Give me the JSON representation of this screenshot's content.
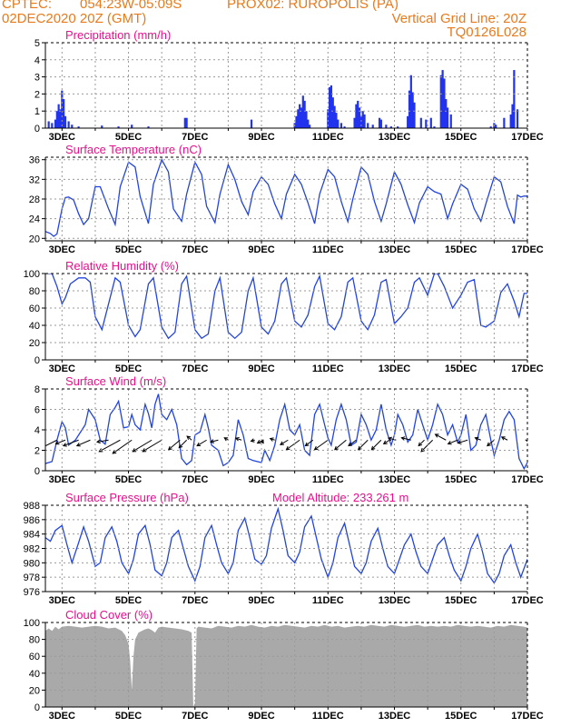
{
  "header": {
    "line1_left": "CPTEC:",
    "coords": "054:23W-05:09S",
    "station": "PROX02: RUROPOLIS (PA)",
    "line2_left": "02DEC2020 20Z (GMT)",
    "grid_note": "Vertical Grid Line: 20Z",
    "run_code": "TQ0126L028"
  },
  "colors": {
    "header": "#e87a1c",
    "panel_title": "#e8108c",
    "series_line": "#2244dd",
    "precip_bar": "#2233ee",
    "cloud_fill": "#a9a9a9",
    "wind_arrow": "#000000"
  },
  "x_axis": {
    "tick_labels": [
      "3DEC",
      "5DEC",
      "7DEC",
      "9DEC",
      "11DEC",
      "13DEC",
      "15DEC",
      "17DEC"
    ],
    "tick_days": [
      3,
      5,
      7,
      9,
      11,
      13,
      15,
      17
    ],
    "range_days": [
      2.5,
      17.0
    ]
  },
  "chart_data": [
    {
      "type": "bar",
      "title": "Precipitation (mm/h)",
      "ylim": [
        0,
        5
      ],
      "yticks": [
        0,
        1,
        2,
        3,
        4,
        5
      ],
      "grid": true,
      "x_days": [
        2.6,
        2.7,
        2.8,
        2.85,
        2.9,
        2.95,
        3.0,
        3.05,
        3.1,
        3.2,
        3.3,
        3.5,
        4.2,
        4.7,
        5.1,
        5.6,
        6.7,
        6.75,
        8.7,
        10.0,
        10.05,
        10.1,
        10.15,
        10.2,
        10.25,
        10.3,
        10.35,
        10.4,
        10.45,
        11.0,
        11.05,
        11.1,
        11.15,
        11.2,
        11.25,
        11.3,
        11.4,
        11.5,
        11.8,
        11.85,
        11.9,
        11.95,
        12.0,
        12.05,
        12.1,
        12.2,
        12.35,
        12.55,
        12.6,
        12.75,
        12.9,
        13.1,
        13.4,
        13.45,
        13.5,
        13.55,
        13.6,
        13.8,
        13.95,
        14.1,
        14.2,
        14.4,
        14.45,
        14.5,
        14.55,
        14.6,
        14.7,
        15.9,
        16.0,
        16.05,
        16.3,
        16.5,
        16.55,
        16.6,
        16.7
      ],
      "values": [
        0.4,
        0.3,
        0.5,
        1.0,
        1.4,
        1.1,
        2.2,
        1.7,
        0.7,
        0.4,
        0.2,
        0.1,
        0.15,
        0.1,
        0.2,
        0.1,
        0.6,
        0.6,
        0.5,
        0.3,
        0.7,
        1.1,
        1.4,
        1.2,
        1.9,
        1.6,
        1.0,
        0.5,
        0.2,
        1.1,
        2.4,
        2.5,
        1.8,
        1.3,
        0.9,
        0.5,
        0.3,
        0.1,
        0.6,
        1.4,
        1.6,
        1.2,
        0.7,
        1.0,
        0.8,
        0.3,
        0.2,
        0.6,
        0.5,
        0.2,
        0.1,
        0.1,
        0.7,
        2.2,
        3.1,
        2.1,
        1.5,
        0.6,
        0.5,
        0.6,
        0.1,
        3.1,
        3.4,
        2.9,
        1.7,
        1.2,
        0.8,
        0.1,
        0.3,
        0.2,
        0.6,
        0.8,
        1.4,
        3.4,
        1.1
      ]
    },
    {
      "type": "line",
      "title": "Surface Temperature (nC)",
      "ylim": [
        19.5,
        36.5
      ],
      "yticks": [
        20,
        24,
        28,
        32,
        36
      ],
      "grid": true,
      "x_days": [
        2.5,
        2.65,
        2.75,
        2.85,
        3.0,
        3.1,
        3.2,
        3.35,
        3.5,
        3.65,
        3.8,
        4.0,
        4.15,
        4.4,
        4.6,
        4.75,
        5.0,
        5.2,
        5.35,
        5.6,
        5.75,
        6.0,
        6.2,
        6.35,
        6.6,
        6.75,
        7.0,
        7.2,
        7.35,
        7.6,
        7.75,
        8.0,
        8.2,
        8.4,
        8.6,
        8.75,
        9.0,
        9.2,
        9.4,
        9.6,
        9.75,
        10.0,
        10.2,
        10.4,
        10.6,
        10.75,
        11.0,
        11.2,
        11.4,
        11.6,
        11.75,
        12.0,
        12.2,
        12.4,
        12.6,
        12.75,
        13.0,
        13.2,
        13.4,
        13.6,
        13.75,
        14.0,
        14.2,
        14.4,
        14.6,
        14.75,
        15.0,
        15.2,
        15.4,
        15.6,
        15.75,
        16.0,
        16.2,
        16.4,
        16.6,
        16.7,
        16.8,
        16.9,
        17.0
      ],
      "values": [
        21.4,
        21.0,
        20.4,
        20.9,
        26.0,
        28.3,
        28.4,
        27.8,
        25.0,
        22.8,
        24.0,
        30.5,
        30.5,
        26.0,
        22.8,
        30.5,
        35.5,
        34.5,
        28.5,
        23.0,
        31.0,
        36.0,
        33.5,
        26.0,
        23.5,
        29.0,
        35.5,
        33.0,
        26.5,
        23.2,
        29.0,
        35.0,
        32.0,
        27.5,
        24.8,
        29.5,
        32.5,
        31.0,
        27.0,
        24.0,
        29.0,
        33.0,
        31.0,
        27.2,
        23.0,
        29.0,
        34.0,
        32.5,
        27.5,
        23.4,
        28.0,
        34.5,
        33.0,
        27.5,
        23.5,
        27.0,
        33.5,
        31.0,
        26.8,
        23.2,
        27.2,
        30.5,
        29.5,
        29.0,
        24.0,
        27.0,
        31.0,
        30.0,
        26.0,
        23.5,
        27.0,
        32.5,
        31.5,
        26.5,
        23.0,
        28.8,
        28.4,
        28.6,
        28.6
      ]
    },
    {
      "type": "line",
      "title": "Relative Humidity (%)",
      "ylim": [
        0,
        100
      ],
      "yticks": [
        0,
        20,
        40,
        60,
        80,
        100
      ],
      "grid": true,
      "x_days": [
        2.5,
        2.7,
        2.85,
        3.0,
        3.1,
        3.25,
        3.5,
        3.7,
        3.85,
        4.0,
        4.2,
        4.4,
        4.6,
        4.75,
        5.0,
        5.2,
        5.35,
        5.6,
        5.75,
        6.0,
        6.2,
        6.4,
        6.6,
        6.75,
        7.0,
        7.2,
        7.4,
        7.6,
        7.75,
        8.0,
        8.2,
        8.4,
        8.6,
        8.75,
        9.0,
        9.2,
        9.4,
        9.6,
        9.75,
        10.0,
        10.2,
        10.4,
        10.6,
        10.75,
        11.0,
        11.2,
        11.4,
        11.6,
        11.75,
        12.0,
        12.2,
        12.4,
        12.6,
        12.75,
        13.0,
        13.2,
        13.4,
        13.6,
        13.75,
        14.0,
        14.2,
        14.3,
        14.5,
        14.6,
        14.75,
        15.0,
        15.2,
        15.4,
        15.6,
        15.75,
        16.0,
        16.2,
        16.4,
        16.6,
        16.75,
        16.9,
        17.0
      ],
      "values": [
        100,
        100,
        85,
        65,
        72,
        88,
        95,
        95,
        90,
        50,
        35,
        65,
        95,
        90,
        40,
        27,
        35,
        88,
        95,
        38,
        25,
        32,
        88,
        97,
        35,
        25,
        30,
        80,
        95,
        32,
        25,
        32,
        80,
        95,
        38,
        30,
        45,
        88,
        95,
        45,
        38,
        52,
        85,
        97,
        42,
        35,
        50,
        90,
        95,
        45,
        35,
        52,
        90,
        93,
        42,
        50,
        60,
        90,
        95,
        75,
        100,
        100,
        85,
        75,
        60,
        75,
        90,
        93,
        40,
        38,
        45,
        78,
        88,
        68,
        50,
        77,
        77
      ]
    },
    {
      "type": "line",
      "title": "Surface Wind (m/s)",
      "ylim": [
        0,
        8
      ],
      "yticks": [
        0,
        2,
        4,
        6,
        8
      ],
      "grid": true,
      "x_days": [
        2.5,
        2.7,
        2.85,
        3.0,
        3.1,
        3.2,
        3.4,
        3.6,
        3.7,
        3.8,
        4.0,
        4.15,
        4.3,
        4.45,
        4.6,
        4.7,
        4.85,
        5.0,
        5.1,
        5.2,
        5.35,
        5.5,
        5.6,
        5.7,
        5.8,
        5.9,
        6.0,
        6.15,
        6.3,
        6.45,
        6.6,
        6.75,
        6.9,
        7.0,
        7.15,
        7.3,
        7.4,
        7.5,
        7.7,
        7.85,
        8.0,
        8.15,
        8.3,
        8.45,
        8.6,
        8.75,
        9.0,
        9.1,
        9.25,
        9.4,
        9.55,
        9.7,
        9.85,
        10.0,
        10.15,
        10.3,
        10.45,
        10.6,
        10.75,
        10.9,
        11.0,
        11.1,
        11.25,
        11.4,
        11.55,
        11.7,
        11.85,
        12.0,
        12.15,
        12.3,
        12.45,
        12.6,
        12.75,
        12.9,
        13.0,
        13.1,
        13.25,
        13.4,
        13.55,
        13.7,
        13.85,
        14.0,
        14.15,
        14.3,
        14.45,
        14.6,
        14.75,
        14.9,
        15.0,
        15.15,
        15.3,
        15.45,
        15.6,
        15.75,
        15.9,
        16.0,
        16.15,
        16.3,
        16.45,
        16.6,
        16.75,
        16.9,
        17.0
      ],
      "values": [
        0.7,
        0.9,
        3.0,
        4.8,
        4.2,
        2.5,
        3.0,
        4.0,
        4.5,
        6.0,
        5.0,
        3.0,
        2.6,
        5.5,
        6.2,
        6.8,
        4.2,
        4.3,
        5.5,
        4.5,
        4.0,
        6.5,
        5.6,
        4.2,
        6.5,
        7.5,
        5.5,
        5.0,
        6.0,
        4.5,
        1.2,
        0.6,
        1.0,
        3.5,
        3.8,
        5.5,
        4.2,
        2.5,
        2.0,
        0.5,
        0.8,
        1.5,
        5.0,
        3.5,
        1.2,
        1.0,
        0.8,
        2.0,
        1.0,
        2.5,
        5.0,
        6.5,
        4.0,
        3.5,
        4.5,
        2.0,
        1.5,
        5.5,
        6.5,
        4.5,
        3.2,
        2.5,
        5.0,
        6.5,
        5.0,
        2.5,
        2.8,
        5.5,
        4.5,
        3.0,
        4.0,
        6.5,
        4.0,
        2.5,
        3.5,
        5.5,
        4.5,
        2.8,
        3.5,
        6.0,
        4.5,
        3.0,
        4.5,
        6.5,
        5.5,
        3.5,
        4.5,
        2.8,
        3.5,
        5.5,
        2.0,
        2.5,
        4.5,
        5.5,
        3.0,
        1.5,
        3.0,
        5.0,
        5.8,
        5.0,
        1.2,
        0.2,
        0.8
      ],
      "arrows": [
        {
          "x_day": 2.85,
          "u": -4.0,
          "v": -2.0
        },
        {
          "x_day": 3.1,
          "u": -2.5,
          "v": -1.0
        },
        {
          "x_day": 3.5,
          "u": -4.0,
          "v": -1.5
        },
        {
          "x_day": 3.85,
          "u": -3.5,
          "v": -1.5
        },
        {
          "x_day": 4.4,
          "u": -3.0,
          "v": -0.5
        },
        {
          "x_day": 4.75,
          "u": -5.5,
          "v": -3.0
        },
        {
          "x_day": 5.1,
          "u": -5.0,
          "v": -3.5
        },
        {
          "x_day": 5.7,
          "u": -5.0,
          "v": -3.0
        },
        {
          "x_day": 6.0,
          "u": -5.0,
          "v": -3.0
        },
        {
          "x_day": 6.55,
          "u": -3.0,
          "v": -2.5
        },
        {
          "x_day": 6.75,
          "u": -2.0,
          "v": -2.0
        },
        {
          "x_day": 6.9,
          "u": -1.2,
          "v": 1.0
        },
        {
          "x_day": 7.35,
          "u": -2.5,
          "v": -1.5
        },
        {
          "x_day": 7.7,
          "u": -2.0,
          "v": -0.5
        },
        {
          "x_day": 8.0,
          "u": -1.0,
          "v": 0.6
        },
        {
          "x_day": 8.4,
          "u": -1.5,
          "v": 0.5
        },
        {
          "x_day": 8.8,
          "u": -1.0,
          "v": -0.3
        },
        {
          "x_day": 9.0,
          "u": 0.5,
          "v": -0.8
        },
        {
          "x_day": 9.05,
          "u": -1.5,
          "v": -0.8
        },
        {
          "x_day": 9.4,
          "u": -1.2,
          "v": 0.4
        },
        {
          "x_day": 9.8,
          "u": -2.0,
          "v": -1.2
        },
        {
          "x_day": 10.15,
          "u": -3.5,
          "v": -2.5
        },
        {
          "x_day": 10.55,
          "u": -2.0,
          "v": -1.5
        },
        {
          "x_day": 11.0,
          "u": -3.5,
          "v": -2.5
        },
        {
          "x_day": 11.55,
          "u": -3.0,
          "v": -2.5
        },
        {
          "x_day": 11.85,
          "u": -2.0,
          "v": -1.5
        },
        {
          "x_day": 12.2,
          "u": -2.5,
          "v": -2.5
        },
        {
          "x_day": 12.6,
          "u": -2.5,
          "v": -2.5
        },
        {
          "x_day": 12.85,
          "u": -1.5,
          "v": -1.0
        },
        {
          "x_day": 13.05,
          "u": -2.0,
          "v": 0.5
        },
        {
          "x_day": 13.5,
          "u": -2.5,
          "v": 0.6
        },
        {
          "x_day": 13.9,
          "u": -1.5,
          "v": -1.5
        },
        {
          "x_day": 14.15,
          "u": -3.0,
          "v": -3.0
        },
        {
          "x_day": 14.55,
          "u": -2.8,
          "v": 1.5
        },
        {
          "x_day": 14.9,
          "u": -2.5,
          "v": -1.0
        },
        {
          "x_day": 15.2,
          "u": -2.5,
          "v": -0.8
        },
        {
          "x_day": 15.6,
          "u": -1.5,
          "v": 0.6
        },
        {
          "x_day": 16.0,
          "u": -1.8,
          "v": -1.5
        },
        {
          "x_day": 16.4,
          "u": -1.5,
          "v": 0.8
        },
        {
          "x_day": 17.0,
          "u": 0.2,
          "v": -0.5
        }
      ]
    },
    {
      "type": "line",
      "title": "Surface Pressure (hPa)",
      "subtitle": "Model Altitude: 233.261 m",
      "ylim": [
        976,
        988
      ],
      "yticks": [
        976,
        978,
        980,
        982,
        984,
        986,
        988
      ],
      "grid": true,
      "x_days": [
        2.5,
        2.65,
        2.8,
        3.0,
        3.15,
        3.3,
        3.5,
        3.65,
        3.8,
        4.0,
        4.15,
        4.3,
        4.5,
        4.65,
        4.8,
        5.0,
        5.15,
        5.3,
        5.5,
        5.65,
        5.8,
        6.0,
        6.15,
        6.3,
        6.5,
        6.65,
        6.8,
        7.0,
        7.15,
        7.3,
        7.5,
        7.65,
        7.8,
        8.0,
        8.15,
        8.3,
        8.5,
        8.65,
        8.8,
        9.0,
        9.15,
        9.3,
        9.5,
        9.65,
        9.8,
        10.0,
        10.15,
        10.3,
        10.5,
        10.65,
        10.8,
        11.0,
        11.15,
        11.3,
        11.5,
        11.65,
        11.8,
        12.0,
        12.15,
        12.3,
        12.5,
        12.65,
        12.8,
        13.0,
        13.15,
        13.3,
        13.5,
        13.65,
        13.8,
        14.0,
        14.15,
        14.3,
        14.5,
        14.65,
        14.8,
        15.0,
        15.15,
        15.3,
        15.5,
        15.65,
        15.8,
        16.0,
        16.15,
        16.3,
        16.5,
        16.65,
        16.8,
        17.0
      ],
      "values": [
        983.5,
        983.0,
        984.5,
        985.2,
        982.5,
        980.0,
        982.8,
        985.0,
        983.0,
        979.5,
        980.0,
        983.5,
        985.0,
        983.0,
        980.0,
        978.5,
        980.5,
        984.0,
        985.2,
        982.5,
        979.0,
        978.2,
        980.0,
        983.5,
        984.5,
        982.0,
        979.5,
        977.5,
        979.5,
        983.5,
        985.2,
        982.5,
        980.0,
        978.5,
        980.0,
        984.5,
        986.2,
        983.5,
        980.5,
        979.8,
        981.0,
        984.8,
        987.5,
        984.5,
        981.0,
        980.0,
        981.5,
        985.0,
        986.5,
        983.5,
        980.5,
        978.0,
        980.0,
        983.5,
        985.5,
        982.5,
        979.5,
        978.5,
        980.0,
        983.0,
        984.8,
        982.0,
        979.5,
        978.5,
        980.5,
        982.5,
        984.0,
        981.5,
        979.5,
        978.5,
        980.5,
        982.5,
        983.5,
        981.0,
        979.0,
        977.5,
        979.5,
        982.0,
        984.0,
        981.5,
        978.5,
        977.2,
        978.5,
        981.0,
        982.5,
        980.0,
        978.0,
        980.5
      ]
    },
    {
      "type": "area",
      "title": "Cloud Cover (%)",
      "ylim": [
        0,
        100
      ],
      "yticks": [
        0,
        20,
        40,
        60,
        80,
        100
      ],
      "grid": true,
      "x_days": [
        2.5,
        2.6,
        2.7,
        2.8,
        2.9,
        3.0,
        3.2,
        3.4,
        3.6,
        3.8,
        4.0,
        4.2,
        4.4,
        4.6,
        4.8,
        4.9,
        5.0,
        5.05,
        5.1,
        5.15,
        5.2,
        5.3,
        5.4,
        5.5,
        5.6,
        5.7,
        5.8,
        5.9,
        6.0,
        6.2,
        6.4,
        6.6,
        6.8,
        6.9,
        6.95,
        7.0,
        7.05,
        7.1,
        7.3,
        7.5,
        7.7,
        7.9,
        8.1,
        8.3,
        8.5,
        8.7,
        8.9,
        9.1,
        9.3,
        9.5,
        9.7,
        9.9,
        10.1,
        10.3,
        10.5,
        10.7,
        10.9,
        11.1,
        11.3,
        11.5,
        11.7,
        11.9,
        12.1,
        12.3,
        12.5,
        12.7,
        12.9,
        13.1,
        13.3,
        13.5,
        13.7,
        13.9,
        14.1,
        14.3,
        14.5,
        14.7,
        14.9,
        15.1,
        15.3,
        15.5,
        15.7,
        15.9,
        16.1,
        16.3,
        16.5,
        16.7,
        16.9,
        17.0
      ],
      "values": [
        90,
        93,
        90,
        95,
        92,
        95,
        96,
        95,
        94,
        95,
        96,
        95,
        93,
        94,
        90,
        85,
        75,
        55,
        20,
        60,
        80,
        88,
        90,
        92,
        93,
        91,
        88,
        94,
        95,
        94,
        93,
        92,
        90,
        88,
        0,
        5,
        93,
        95,
        94,
        93,
        96,
        95,
        94,
        96,
        95,
        97,
        95,
        94,
        96,
        95,
        97,
        96,
        95,
        94,
        96,
        95,
        97,
        95,
        96,
        94,
        95,
        96,
        95,
        97,
        96,
        95,
        97,
        96,
        95,
        96,
        97,
        95,
        96,
        95,
        96,
        95,
        97,
        96,
        95,
        96,
        95,
        94,
        96,
        95,
        97,
        96,
        95,
        94
      ]
    }
  ]
}
